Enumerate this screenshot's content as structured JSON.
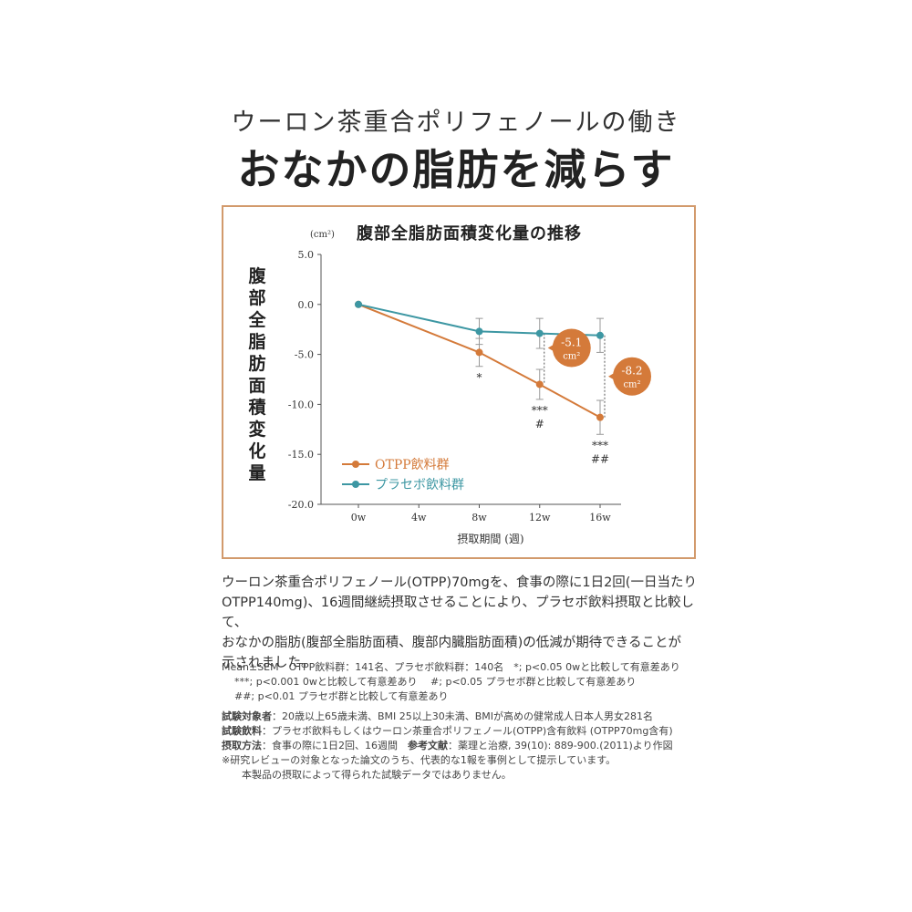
{
  "header": {
    "subtitle": "ウーロン茶重合ポリフェノールの働き",
    "title": "おなかの脂肪を減らす"
  },
  "chart_data": {
    "type": "line",
    "title": "腹部全脂肪面積変化量の推移",
    "ylabel": "腹部全脂肪面積変化量",
    "yunit": "(cm²)",
    "xlabel": "摂取期間 (週)",
    "categories": [
      "0w",
      "4w",
      "8w",
      "12w",
      "16w"
    ],
    "ylim": [
      -20.0,
      5.0
    ],
    "yticks": [
      "5.0",
      "0.0",
      "-5.0",
      "-10.0",
      "-15.0",
      "-20.0"
    ],
    "series": [
      {
        "name": "OTPP飲料群",
        "color": "#d47a3a",
        "x": [
          0,
          8,
          12,
          16
        ],
        "values": [
          0.0,
          -4.8,
          -8.0,
          -11.3
        ],
        "err": [
          0,
          1.4,
          1.5,
          1.7
        ],
        "sig": [
          "",
          "*",
          "***\n#",
          "***\n##"
        ]
      },
      {
        "name": "プラセボ飲料群",
        "color": "#3d97a3",
        "x": [
          0,
          8,
          12,
          16
        ],
        "values": [
          0.0,
          -2.7,
          -2.9,
          -3.1
        ],
        "err": [
          0,
          1.3,
          1.5,
          1.7
        ]
      }
    ],
    "callouts": [
      {
        "x": 12,
        "value": "-5.1",
        "unit": "cm²"
      },
      {
        "x": 16,
        "value": "-8.2",
        "unit": "cm²"
      }
    ],
    "legend": "bottom-left"
  },
  "description": [
    "ウーロン茶重合ポリフェノール(OTPP)70mgを、食事の際に1日2回(一日当たり",
    "OTPP140mg)、16週間継続摂取させることにより、プラセボ飲料摂取と比較して、",
    "おなかの脂肪(腹部全脂肪面積、腹部内臓脂肪面積)の低減が期待できることが",
    "示されました。"
  ],
  "notes": [
    "Mean±SEM　OTPP飲料群：141名、プラセボ飲料群：140名　*; p<0.05 0wと比較して有意差あり",
    "***; p<0.001 0wと比較して有意差あり　 #; p<0.05 プラセボ群と比較して有意差あり",
    "##; p<0.01 プラセボ群と比較して有意差あり"
  ],
  "study": {
    "subjects_label": "試験対象者",
    "subjects": "：20歳以上65歳未満、BMI 25以上30未満、BMIが高めの健常成人日本人男女281名",
    "drink_label": "試験飲料",
    "drink": "：プラセボ飲料もしくはウーロン茶重合ポリフェノール(OTPP)含有飲料 (OTPP70mg含有)",
    "method_label": "摂取方法",
    "method": "：食事の際に1日2回、16週間　",
    "ref_label": "参考文献",
    "ref": "：薬理と治療, 39(10): 889-900.(2011)より作図",
    "disclaimer1": "※研究レビューの対象となった論文のうち、代表的な1報を事例として提示しています。",
    "disclaimer2": "本製品の摂取によって得られた試験データではありません。"
  }
}
